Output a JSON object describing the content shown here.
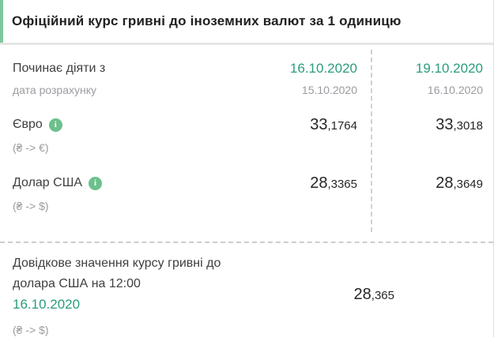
{
  "colors": {
    "accent_date_green": "#2a9d7c",
    "info_icon_green": "#6cc08b",
    "header_stripe_green": "#7cc79c"
  },
  "icons": {
    "info": "i"
  },
  "header": {
    "title": "Офіційний курс гривні до іноземних валют за 1 одиницю"
  },
  "rates": {
    "period_row": {
      "label": "Починає діяти з",
      "sublabel": "дата розрахунку",
      "col1": {
        "effective": "16.10.2020",
        "calculated": "15.10.2020"
      },
      "col2": {
        "effective": "19.10.2020",
        "calculated": "16.10.2020"
      }
    },
    "rows": [
      {
        "name": "Євро",
        "pair": "(₴ -> €)",
        "col1": {
          "int": "33",
          "frac": ",1764"
        },
        "col2": {
          "int": "33",
          "frac": ",3018"
        }
      },
      {
        "name": "Долар США",
        "pair": "(₴ -> $)",
        "col1": {
          "int": "28",
          "frac": ",3365"
        },
        "col2": {
          "int": "28",
          "frac": ",3649"
        }
      }
    ]
  },
  "reference": {
    "label_line1": "Довідкове значення курсу гривні до",
    "label_line2": "долара США на 12:00",
    "date": "16.10.2020",
    "pair": "(₴ -> $)",
    "value": {
      "int": "28",
      "frac": ",365"
    }
  }
}
